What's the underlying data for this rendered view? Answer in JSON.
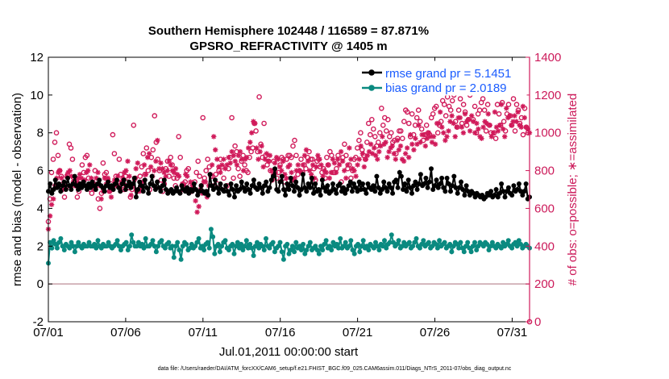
{
  "chart_data": {
    "type": "line",
    "title_line1": "Southern Hemisphere 102448 / 116589 = 87.871%",
    "title_line2": "GPSRO_REFRACTIVITY @ 1405 m",
    "xlabel": "Jul.01,2011 00:00:00 start",
    "ylabel_left": "rmse and bias (model - observation)",
    "ylabel_right": "# of obs: o=possible; ∗=assimilated",
    "footer": "data file: /Users/raeder/DAI/ATM_forcXX/CAM6_setup/f.e21.FHIST_BGC.f09_025.CAM6assim.011/Diags_NTrS_2011-07/obs_diag_output.nc",
    "x_ticks": [
      "07/01",
      "07/06",
      "07/11",
      "07/16",
      "07/21",
      "07/26",
      "07/31"
    ],
    "x_tick_values": [
      1,
      6,
      11,
      16,
      21,
      26,
      31
    ],
    "xlim": [
      1,
      32.125
    ],
    "ylim_left": [
      -2,
      12
    ],
    "y_ticks_left": [
      "-2",
      "0",
      "2",
      "4",
      "6",
      "8",
      "10",
      "12"
    ],
    "y_tick_values_left": [
      -2,
      0,
      2,
      4,
      6,
      8,
      10,
      12
    ],
    "ylim_right": [
      0,
      1400
    ],
    "y_ticks_right": [
      "0",
      "200",
      "400",
      "600",
      "800",
      "1000",
      "1200",
      "1400"
    ],
    "y_tick_values_right": [
      0,
      200,
      400,
      600,
      800,
      1000,
      1200,
      1400
    ],
    "zero_line": 0,
    "legend": [
      "rmse grand pr = 5.1451",
      "bias grand pr = 2.0189"
    ],
    "colors": {
      "rmse": "#000000",
      "bias": "#0a8a80",
      "obs": "#d01a5a",
      "zero": "#c8a0a8"
    },
    "series": [
      {
        "name": "rmse grand pr = 5.1451",
        "axis": "left",
        "values": [
          4.9,
          5.3,
          4.8,
          5.0,
          5.5,
          5.1,
          5.3,
          4.9,
          5.2,
          5.4,
          5.0,
          5.6,
          5.2,
          5.0,
          5.3,
          5.7,
          5.2,
          5.0,
          5.3,
          5.1,
          5.4,
          5.2,
          5.0,
          5.3,
          5.1,
          5.4,
          5.2,
          5.0,
          5.3,
          5.5,
          5.2,
          5.1,
          4.9,
          5.2,
          5.4,
          5.1,
          5.2,
          5.0,
          5.3,
          5.5,
          5.1,
          4.9,
          5.3,
          5.5,
          5.0,
          5.2,
          5.4,
          5.1,
          5.3,
          5.6,
          4.6,
          5.0,
          5.4,
          5.2,
          4.9,
          5.5,
          5.1,
          4.8,
          5.3,
          5.7,
          5.2,
          5.0,
          5.4,
          5.1,
          4.9,
          5.2,
          5.5,
          5.0,
          4.8,
          4.9,
          5.0,
          4.8,
          4.9,
          5.1,
          4.9,
          4.8,
          5.2,
          5.0,
          4.9,
          5.1,
          4.8,
          5.0,
          4.9,
          5.3,
          5.0,
          4.7,
          4.9,
          5.2,
          4.9,
          4.8,
          4.9,
          4.7,
          5.8,
          5.2,
          5.0,
          5.5,
          5.1,
          4.8,
          5.3,
          5.0,
          4.9,
          5.2,
          4.9,
          4.7,
          5.3,
          5.0,
          4.6,
          5.2,
          4.9,
          5.0,
          5.4,
          5.1,
          4.9,
          5.3,
          5.0,
          4.8,
          5.2,
          5.5,
          5.1,
          5.0,
          5.3,
          5.1,
          4.8,
          5.2,
          5.4,
          4.9,
          5.1,
          5.5,
          5.7,
          6.1,
          5.0,
          4.9,
          5.4,
          5.7,
          5.0,
          4.7,
          5.3,
          5.0,
          5.6,
          5.2,
          4.9,
          5.4,
          5.1,
          4.7,
          5.0,
          5.8,
          5.1,
          4.9,
          5.3,
          5.1,
          5.6,
          4.8,
          5.3,
          4.9,
          5.0,
          4.7,
          5.5,
          5.1,
          4.9,
          5.2,
          4.8,
          4.9,
          5.3,
          5.0,
          4.8,
          5.2,
          5.3,
          4.9,
          5.1,
          4.8,
          5.0,
          5.2,
          5.4,
          4.9,
          5.3,
          5.1,
          4.9,
          5.4,
          5.0,
          5.3,
          5.0,
          4.8,
          5.3,
          5.1,
          5.0,
          5.2,
          4.9,
          5.7,
          5.1,
          4.8,
          5.0,
          5.4,
          5.1,
          4.9,
          5.3,
          5.1,
          4.8,
          5.4,
          5.5,
          5.1,
          5.9,
          5.7,
          5.0,
          5.3,
          4.9,
          5.5,
          5.1,
          4.8,
          5.2,
          5.4,
          5.0,
          5.3,
          5.8,
          5.2,
          5.3,
          5.6,
          5.1,
          5.4,
          6.1,
          5.0,
          5.2,
          5.5,
          5.1,
          5.3,
          5.6,
          5.1,
          4.9,
          5.6,
          5.3,
          4.9,
          5.2,
          5.7,
          5.1,
          4.8,
          5.1,
          5.4,
          5.0,
          4.7,
          5.2,
          4.9,
          4.7,
          4.9,
          4.8,
          4.6,
          4.8,
          4.7,
          4.6,
          4.7,
          4.5,
          4.6,
          4.8,
          4.7,
          4.9,
          4.6,
          4.7,
          5.0,
          4.6,
          4.8,
          5.3,
          4.9,
          4.6,
          4.9,
          5.1,
          4.8,
          4.7,
          5.2,
          4.9,
          5.0,
          5.3,
          4.9,
          4.7,
          4.9,
          5.3,
          4.5,
          4.6
        ]
      },
      {
        "name": "bias grand pr = 2.0189",
        "axis": "left",
        "values": [
          1.1,
          2.2,
          1.9,
          2.3,
          2.1,
          1.9,
          2.2,
          2.4,
          2.0,
          1.8,
          2.1,
          2.0,
          1.9,
          2.2,
          2.0,
          1.7,
          2.0,
          2.2,
          2.0,
          1.9,
          2.1,
          2.0,
          2.0,
          2.2,
          2.0,
          2.0,
          2.1,
          1.9,
          2.3,
          2.0,
          1.9,
          2.1,
          2.0,
          2.0,
          2.2,
          2.0,
          1.9,
          2.0,
          2.1,
          2.3,
          2.0,
          1.8,
          2.0,
          2.1,
          2.2,
          1.8,
          2.0,
          2.6,
          2.2,
          2.0,
          2.0,
          2.2,
          2.0,
          2.1,
          1.9,
          2.4,
          2.0,
          2.0,
          2.1,
          2.3,
          2.0,
          1.7,
          2.0,
          2.2,
          2.3,
          2.0,
          1.9,
          2.1,
          2.2,
          1.9,
          2.0,
          1.4,
          2.0,
          2.2,
          1.8,
          1.3,
          2.0,
          2.2,
          2.1,
          1.8,
          1.9,
          2.1,
          1.9,
          2.0,
          2.2,
          2.4,
          1.9,
          2.0,
          1.8,
          2.1,
          2.2,
          1.9,
          2.9,
          2.5,
          1.6,
          2.0,
          2.1,
          1.7,
          2.0,
          2.2,
          2.3,
          1.9,
          1.8,
          2.0,
          2.1,
          1.6,
          2.0,
          2.2,
          1.9,
          2.1,
          1.8,
          2.0,
          2.3,
          1.9,
          2.1,
          1.9,
          1.5,
          2.0,
          2.2,
          1.9,
          2.1,
          2.0,
          1.8,
          2.4,
          2.0,
          1.9,
          2.1,
          2.2,
          1.7,
          1.9,
          2.0,
          2.2,
          1.7,
          1.3,
          2.0,
          2.1,
          1.6,
          1.8,
          2.0,
          1.7,
          2.2,
          1.9,
          2.0,
          1.8,
          2.1,
          1.6,
          1.8,
          2.0,
          2.2,
          1.8,
          1.9,
          2.0,
          1.8,
          1.6,
          2.0,
          1.8,
          2.1,
          2.3,
          1.9,
          2.0,
          1.8,
          2.2,
          2.0,
          2.1,
          1.9,
          2.4,
          1.9,
          2.0,
          2.2,
          1.9,
          2.0,
          2.3,
          1.8,
          1.6,
          2.0,
          2.1,
          1.7,
          2.0,
          2.3,
          1.9,
          2.0,
          1.8,
          2.1,
          2.0,
          1.9,
          2.2,
          2.0,
          1.8,
          2.1,
          2.0,
          2.3,
          1.9,
          2.1,
          2.2,
          2.6,
          2.2,
          2.0,
          2.1,
          2.3,
          1.9,
          2.0,
          2.2,
          2.0,
          2.1,
          2.2,
          1.9,
          2.0,
          2.2,
          2.4,
          2.0,
          1.9,
          2.1,
          2.3,
          2.0,
          2.1,
          2.2,
          1.9,
          2.0,
          2.2,
          2.1,
          1.9,
          2.3,
          2.0,
          2.1,
          2.2,
          1.9,
          2.0,
          2.1,
          1.7,
          2.0,
          2.2,
          2.1,
          1.9,
          2.2,
          1.9,
          1.7,
          2.0,
          2.2,
          1.9,
          1.7,
          2.0,
          2.2,
          1.8,
          2.0,
          2.2,
          2.1,
          2.0,
          2.2,
          2.1,
          1.8,
          2.0,
          2.2,
          2.0,
          1.9,
          2.1,
          2.0,
          1.9,
          2.2,
          2.0,
          2.1,
          2.3,
          2.0,
          1.9,
          2.1,
          2.2,
          2.0,
          2.3,
          2.1,
          1.9,
          2.0,
          2.1,
          2.0,
          1.9
        ]
      },
      {
        "name": "obs possible",
        "axis": "right",
        "marker": "o",
        "values": [
          530,
          650,
          790,
          860,
          950,
          1000,
          880,
          800,
          770,
          730,
          660,
          710,
          780,
          940,
          920,
          860,
          760,
          720,
          660,
          690,
          750,
          830,
          790,
          870,
          880,
          760,
          700,
          680,
          730,
          800,
          720,
          650,
          600,
          680,
          840,
          780,
          790,
          750,
          690,
          730,
          990,
          890,
          770,
          720,
          860,
          780,
          710,
          700,
          770,
          740,
          710,
          660,
          700,
          1040,
          760,
          690,
          700,
          770,
          820,
          890,
          780,
          920,
          800,
          700,
          870,
          910,
          1090,
          950,
          860,
          800,
          750,
          690,
          730,
          810,
          850,
          770,
          870,
          830,
          760,
          720,
          760,
          980,
          870,
          720,
          730,
          740,
          800,
          810,
          720,
          690,
          700,
          740,
          790,
          850,
          770,
          720,
          1080,
          760,
          800,
          860,
          820,
          770,
          770,
          720,
          780,
          730,
          800,
          860,
          820,
          760,
          700,
          720,
          810,
          870,
          1080,
          760,
          930,
          900,
          810,
          770,
          850,
          880,
          830,
          800,
          790,
          870,
          900,
          920,
          1050,
          1010,
          900,
          1190,
          940,
          870,
          1050,
          880,
          830,
          850,
          800,
          750,
          850,
          790,
          760,
          790,
          830,
          870,
          860,
          740,
          860,
          880,
          880,
          870,
          930,
          960,
          880,
          780,
          800,
          860,
          790,
          830,
          810,
          870,
          900,
          860,
          860,
          810,
          750,
          850,
          860,
          820,
          790,
          810,
          760,
          870,
          830,
          900,
          880,
          790,
          790,
          810,
          880,
          850,
          740,
          870,
          940,
          880,
          810,
          830,
          760,
          800,
          860,
          870,
          920,
          960,
          1000,
          910,
          880,
          860,
          950,
          1050,
          990,
          1070,
          1020,
          980,
          930,
          950,
          1000,
          1130,
          1040,
          1080,
          1010,
          1070,
          980,
          1000,
          950,
          960,
          890,
          970,
          1010,
          1010,
          970,
          1060,
          1120,
          1110,
          1050,
          980,
          1100,
          990,
          1040,
          1080,
          1120,
          1060,
          1020,
          960,
          990,
          1040,
          1000,
          990,
          1080,
          1100,
          1130,
          1140,
          1000,
          1040,
          1060,
          1170,
          1150,
          1090,
          1190,
          1140,
          1120,
          1170,
          1200,
          1060,
          1030,
          1120,
          1180,
          1050,
          1150,
          1110,
          1040,
          1070,
          1200,
          1220,
          1070,
          1140,
          1000,
          1100,
          1120,
          1160,
          1180,
          1120,
          1010,
          1150,
          1040,
          1000,
          1230,
          1000,
          970,
          1150,
          1100,
          1040,
          1160,
          1060,
          1010,
          1100,
          1150,
          1090,
          1040,
          1180,
          1010,
          1150,
          1120,
          1050,
          1080,
          990,
          1130,
          1030,
          1000,
          0
        ]
      },
      {
        "name": "obs assimilated",
        "axis": "right",
        "marker": "*",
        "values": [
          490,
          560,
          620,
          650,
          720,
          760,
          790,
          800,
          760,
          700,
          720,
          770,
          790,
          800,
          770,
          740,
          720,
          740,
          760,
          780,
          760,
          730,
          750,
          790,
          800,
          830,
          760,
          740,
          700,
          760,
          790,
          720,
          650,
          690,
          760,
          730,
          760,
          690,
          660,
          700,
          750,
          720,
          770,
          710,
          740,
          760,
          790,
          800,
          850,
          770,
          670,
          720,
          750,
          810,
          840,
          690,
          700,
          740,
          830,
          780,
          870,
          890,
          820,
          770,
          800,
          850,
          960,
          810,
          840,
          810,
          790,
          770,
          800,
          850,
          830,
          800,
          790,
          810,
          780,
          770,
          690,
          730,
          720,
          780,
          770,
          700,
          740,
          720,
          710,
          640,
          580,
          610,
          700,
          680,
          740,
          740,
          660,
          720,
          780,
          830,
          980,
          910,
          860,
          820,
          790,
          830,
          860,
          810,
          830,
          870,
          840,
          900,
          880,
          850,
          830,
          880,
          900,
          860,
          800,
          860,
          870,
          920,
          950,
          1000,
          1060,
          1050,
          920,
          860,
          900,
          930,
          820,
          860,
          890,
          850,
          880,
          800,
          780,
          840,
          870,
          860,
          820,
          800,
          850,
          780,
          760,
          820,
          830,
          790,
          750,
          760,
          800,
          830,
          800,
          790,
          830,
          880,
          910,
          850,
          800,
          780,
          830,
          760,
          820,
          880,
          860,
          830,
          770,
          800,
          790,
          830,
          760,
          790,
          860,
          840,
          790,
          860,
          830,
          900,
          850,
          800,
          760,
          830,
          920,
          860,
          810,
          800,
          770,
          830,
          860,
          930,
          890,
          820,
          860,
          880,
          900,
          940,
          890,
          920,
          880,
          860,
          900,
          930,
          980,
          940,
          950,
          870,
          900,
          920,
          930,
          890,
          860,
          960,
          910,
          930,
          860,
          850,
          890,
          920,
          870,
          990,
          940,
          910,
          970,
          940,
          1040,
          950,
          990,
          990,
          930,
          970,
          1000,
          980,
          950,
          980,
          940,
          1050,
          1050,
          1110,
          1030,
          1000,
          960,
          980,
          1010,
          1060,
          1090,
          1050,
          980,
          1030,
          1080,
          1080,
          1030,
          1000,
          1100,
          1060,
          1070,
          1010,
          1090,
          1060,
          1000,
          1050,
          1020,
          980,
          970,
          1030,
          1060,
          1050,
          1100,
          1040,
          980,
          1000,
          1110,
          1030,
          1010,
          1040,
          1150,
          1020,
          980,
          1130,
          1080,
          1090,
          1040,
          1060,
          1090,
          1060,
          1110,
          1040,
          1030,
          1140,
          1080,
          1030,
          1020,
          1000
        ]
      }
    ]
  }
}
